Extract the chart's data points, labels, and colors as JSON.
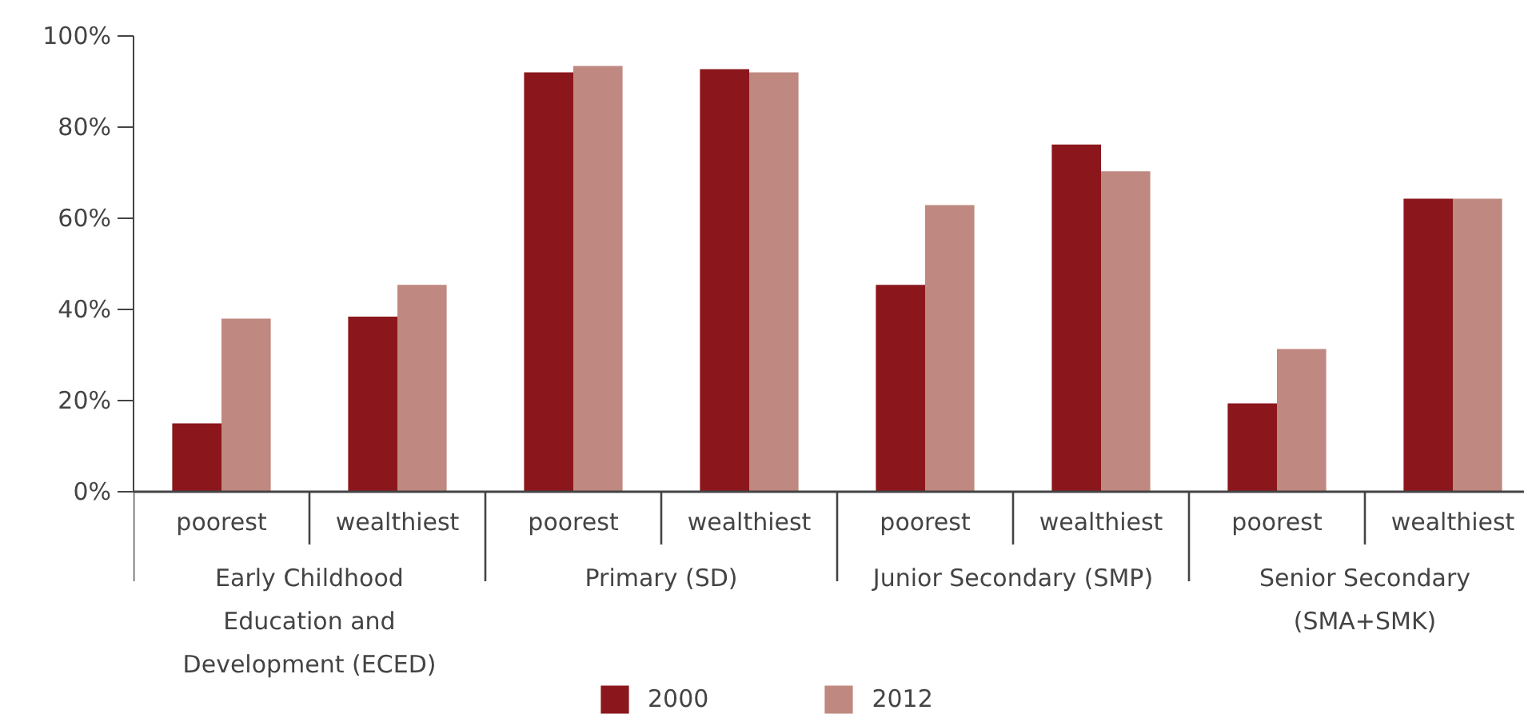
{
  "chart_data": {
    "type": "bar",
    "categories": [
      "poorest",
      "wealthiest",
      "poorest",
      "wealthiest",
      "poorest",
      "wealthiest",
      "poorest",
      "wealthiest"
    ],
    "annotations": [
      "Early Childhood\nEducation and\nDevelopment (ECED)",
      "Primary (SD)",
      "Junior Secondary (SMP)",
      "Senior Secondary\n(SMA+SMK)"
    ],
    "series": [
      {
        "name": "2000",
        "color": "#8b171c",
        "values": [
          15,
          38.4,
          92,
          92.7,
          45.4,
          76.2,
          19.4,
          64.3
        ]
      },
      {
        "name": "2012",
        "color": "#bf8880",
        "values": [
          38,
          45.4,
          93.4,
          92,
          62.9,
          70.3,
          31.3,
          64.3
        ]
      }
    ],
    "ylim": [
      0,
      100
    ],
    "yticks": [
      {
        "value": 0,
        "label": "0%"
      },
      {
        "value": 20,
        "label": "20%"
      },
      {
        "value": 40,
        "label": "40%"
      },
      {
        "value": 60,
        "label": "60%"
      },
      {
        "value": 80,
        "label": "80%"
      },
      {
        "value": 100,
        "label": "100%"
      }
    ],
    "grid": false,
    "legend": "bottom"
  }
}
